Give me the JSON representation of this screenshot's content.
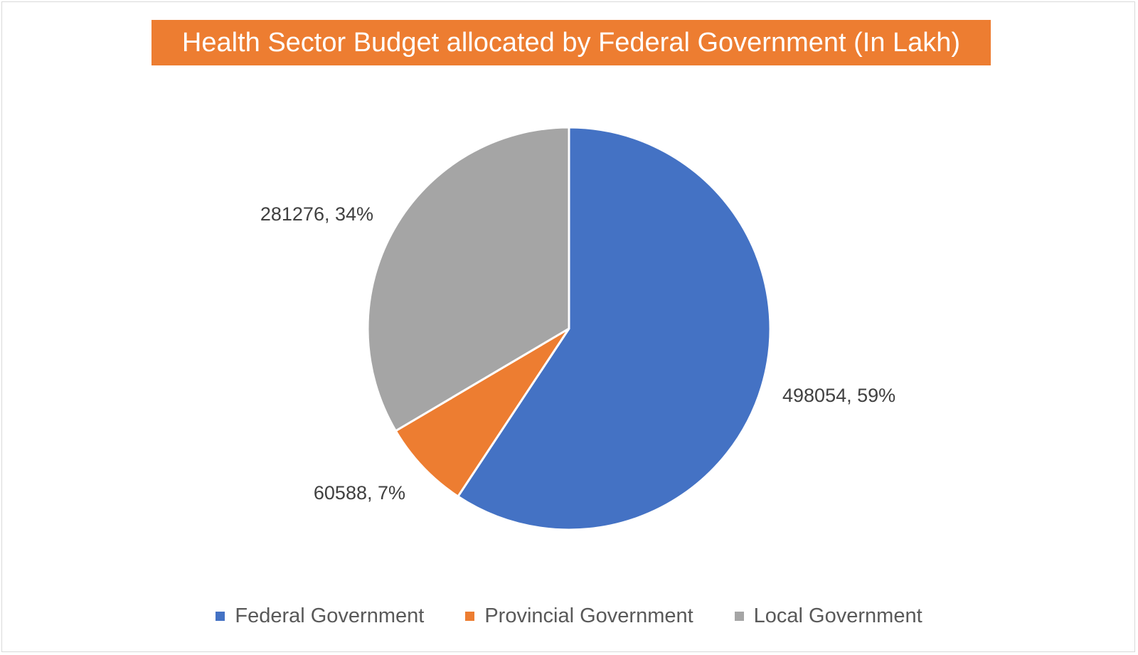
{
  "chart_data": {
    "type": "pie",
    "title": "Health Sector Budget allocated by Federal Government (In Lakh)",
    "categories": [
      "Federal Government",
      "Provincial Government",
      "Local Government"
    ],
    "values": [
      498054,
      60588,
      281276
    ],
    "percentages": [
      59,
      7,
      34
    ],
    "data_labels": [
      "498054, 59%",
      "60588, 7%",
      "281276, 34%"
    ],
    "colors": [
      "#4472c4",
      "#ed7d31",
      "#a5a5a5"
    ],
    "legend_position": "bottom",
    "start_angle_deg": 0,
    "direction": "clockwise"
  }
}
